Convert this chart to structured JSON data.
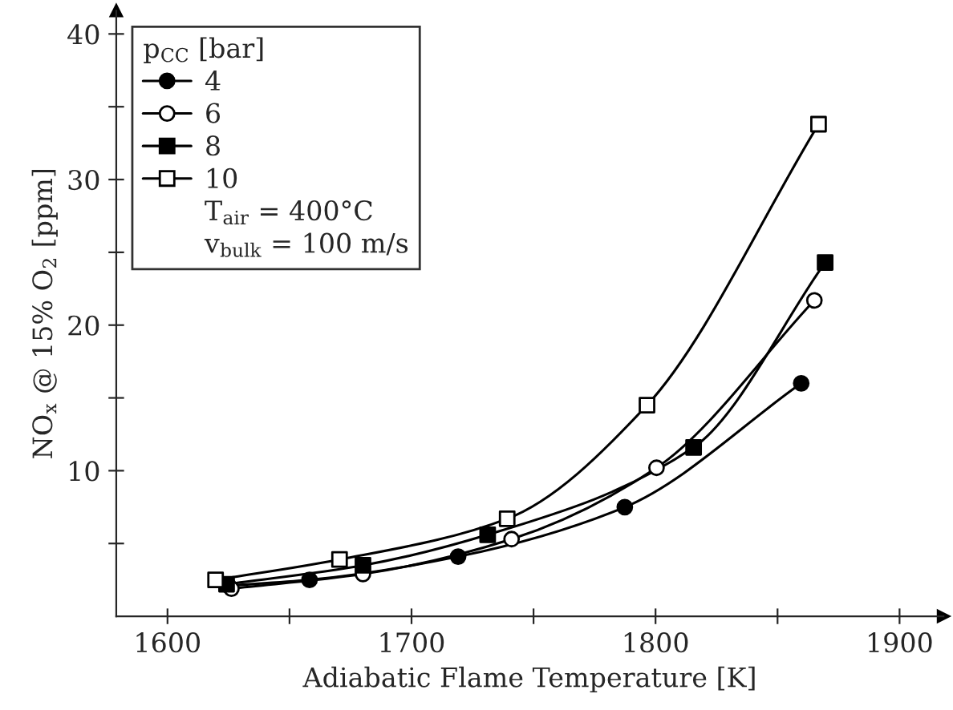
{
  "chart_data": {
    "type": "line",
    "xlabel": "Adiabatic Flame Temperature [K]",
    "ylabel": "NO$_{x}$ @ 15% O$_{2}$ [ppm]",
    "legend_title": "p$_{CC}$ [bar]",
    "legend": "top left",
    "annotations": [
      "T$_{air}$ = 400°C",
      "v$_{bulk}$ = 100 m/s"
    ],
    "xlim": [
      1579,
      1918
    ],
    "ylim": [
      0,
      41.6
    ],
    "xticks": [
      1600,
      {
        "value": 1650,
        "label": null
      },
      1700,
      {
        "value": 1750,
        "label": null
      },
      1800,
      {
        "value": 1850,
        "label": null
      },
      1900
    ],
    "yticks": [
      {
        "value": 5,
        "label": null
      },
      10,
      {
        "value": 15,
        "label": null
      },
      20,
      {
        "value": 25,
        "label": null
      },
      30,
      {
        "value": 35,
        "label": null
      },
      40
    ],
    "grid": false,
    "series": [
      {
        "name": "4",
        "color": "#000000",
        "marker": "circle",
        "colors": [
          "#000000",
          "#000000",
          "#000000",
          "#000000",
          "#000000"
        ],
        "x": [
          1625,
          1658.2,
          1719.1,
          1787.4,
          1859.7
        ],
        "values": [
          2.1,
          2.5,
          4.1,
          7.5,
          16.0
        ]
      },
      {
        "name": "6",
        "color": "#000000",
        "marker": "circle",
        "colors": [
          "#ffffff",
          "#ffffff",
          "#ffffff",
          "#ffffff",
          "#ffffff"
        ],
        "x": [
          1626.2,
          1680.1,
          1741.0,
          1800.4,
          1865.1
        ],
        "values": [
          1.9,
          2.9,
          5.3,
          10.2,
          21.7
        ]
      },
      {
        "name": "8",
        "color": "#000000",
        "marker": "square",
        "colors": [
          "#000000",
          "#000000",
          "#000000",
          "#000000",
          "#000000"
        ],
        "x": [
          1624.2,
          1680.1,
          1731.2,
          1815.6,
          1869.5
        ],
        "values": [
          2.2,
          3.5,
          5.6,
          11.6,
          24.3
        ]
      },
      {
        "name": "10",
        "color": "#000000",
        "marker": "square",
        "colors": [
          "#ffffff",
          "#ffffff",
          "#ffffff",
          "#ffffff",
          "#ffffff"
        ],
        "x": [
          1619.7,
          1670.5,
          1739.2,
          1796.5,
          1866.8
        ],
        "values": [
          2.5,
          3.9,
          6.7,
          14.5,
          33.8
        ]
      }
    ]
  }
}
